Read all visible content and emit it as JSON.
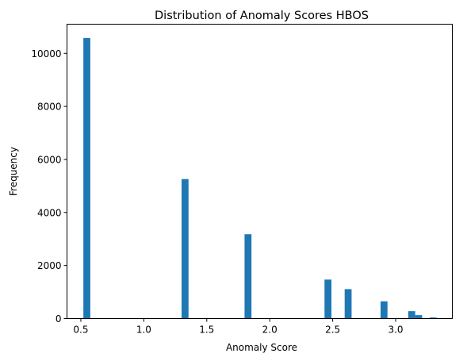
{
  "chart_data": {
    "type": "bar",
    "title": "Distribution of Anomaly Scores HBOS",
    "xlabel": "Anomaly Score",
    "ylabel": "Frequency",
    "xlim": [
      0.39,
      3.45
    ],
    "ylim": [
      0,
      11100
    ],
    "xticks": [
      "0.5",
      "1.0",
      "1.5",
      "2.0",
      "2.5",
      "3.0"
    ],
    "yticks": [
      "0",
      "2000",
      "4000",
      "6000",
      "8000",
      "10000"
    ],
    "grid": false,
    "bar_color": "#1f77b4",
    "bins": [
      {
        "x_start": 0.52,
        "x_end": 0.575,
        "value": 10580
      },
      {
        "x_start": 1.3,
        "x_end": 1.355,
        "value": 5260
      },
      {
        "x_start": 1.8,
        "x_end": 1.855,
        "value": 3180
      },
      {
        "x_start": 2.435,
        "x_end": 2.49,
        "value": 1470
      },
      {
        "x_start": 2.595,
        "x_end": 2.65,
        "value": 1110
      },
      {
        "x_start": 2.88,
        "x_end": 2.935,
        "value": 650
      },
      {
        "x_start": 3.1,
        "x_end": 3.155,
        "value": 280
      },
      {
        "x_start": 3.155,
        "x_end": 3.21,
        "value": 130
      },
      {
        "x_start": 3.27,
        "x_end": 3.325,
        "value": 40
      }
    ]
  }
}
